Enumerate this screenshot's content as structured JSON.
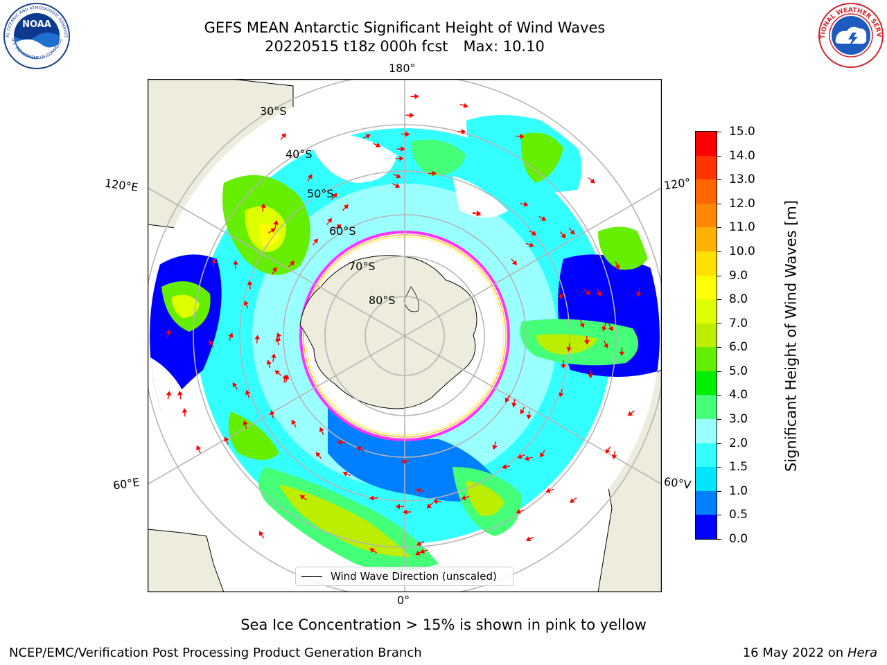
{
  "title": {
    "line1": "GEFS MEAN Antarctic Significant Height of Wind Waves",
    "line2_run": "20220515 t18z 000h fcst",
    "line2_max": "Max: 10.10"
  },
  "logos": {
    "noaa": {
      "text": "NOAA",
      "ring_top": "NATIONAL OCEANIC AND ATMOSPHERIC ADMINISTRATION",
      "ring_bottom": "U.S. DEPARTMENT OF COMMERCE"
    },
    "nws": {
      "ring_text": "NATIONAL WEATHER SERVICE"
    }
  },
  "map": {
    "projection": "south polar stereographic",
    "longitude_labels": {
      "top": "180°",
      "bottom": "0°",
      "left_upper": "120°E",
      "left_lower": "60°E",
      "right_upper": "120°",
      "right_lower": "60°V"
    },
    "latitude_labels": [
      "30°S",
      "40°S",
      "50°S",
      "60°S",
      "70°S",
      "80°S"
    ],
    "colors": {
      "land": "#eeecdc",
      "ocean": "#ffffff",
      "graticule": "#b5b5b5",
      "arrow": "#ff0000",
      "ice_edge": [
        "#ff33ff",
        "#ffbb33",
        "#ffee44"
      ]
    },
    "legend": {
      "label": "Wind Wave Direction (unscaled)"
    }
  },
  "colorbar": {
    "label": "Significant Height of Wind Waves [m]",
    "ticks": [
      "15.0",
      "14.0",
      "13.0",
      "12.0",
      "11.0",
      "10.0",
      "9.0",
      "8.0",
      "7.0",
      "6.0",
      "5.0",
      "4.0",
      "3.0",
      "2.0",
      "1.5",
      "1.0",
      "0.5",
      "0.0"
    ],
    "bands": [
      {
        "from": 0.0,
        "to": 0.5,
        "color": "#0000ff"
      },
      {
        "from": 0.5,
        "to": 1.0,
        "color": "#0080ff"
      },
      {
        "from": 1.0,
        "to": 1.5,
        "color": "#00e5ff"
      },
      {
        "from": 1.5,
        "to": 2.0,
        "color": "#33ffff"
      },
      {
        "from": 2.0,
        "to": 3.0,
        "color": "#99ffff"
      },
      {
        "from": 3.0,
        "to": 4.0,
        "color": "#44ff77"
      },
      {
        "from": 4.0,
        "to": 5.0,
        "color": "#00ee00"
      },
      {
        "from": 5.0,
        "to": 6.0,
        "color": "#66ee00"
      },
      {
        "from": 6.0,
        "to": 7.0,
        "color": "#bbee00"
      },
      {
        "from": 7.0,
        "to": 8.0,
        "color": "#ddff00"
      },
      {
        "from": 8.0,
        "to": 9.0,
        "color": "#ffff00"
      },
      {
        "from": 9.0,
        "to": 10.0,
        "color": "#ffe000"
      },
      {
        "from": 10.0,
        "to": 11.0,
        "color": "#ffb000"
      },
      {
        "from": 11.0,
        "to": 12.0,
        "color": "#ff8800"
      },
      {
        "from": 12.0,
        "to": 13.0,
        "color": "#ff6600"
      },
      {
        "from": 13.0,
        "to": 14.0,
        "color": "#ff3300"
      },
      {
        "from": 14.0,
        "to": 15.0,
        "color": "#ff0000"
      }
    ]
  },
  "footer": {
    "note": "Sea Ice Concentration > 15% is shown in pink to yellow",
    "credit": "NCEP/EMC/Verification Post Processing Product Generation Branch",
    "date": "16 May 2022 on",
    "host": "Hera"
  }
}
